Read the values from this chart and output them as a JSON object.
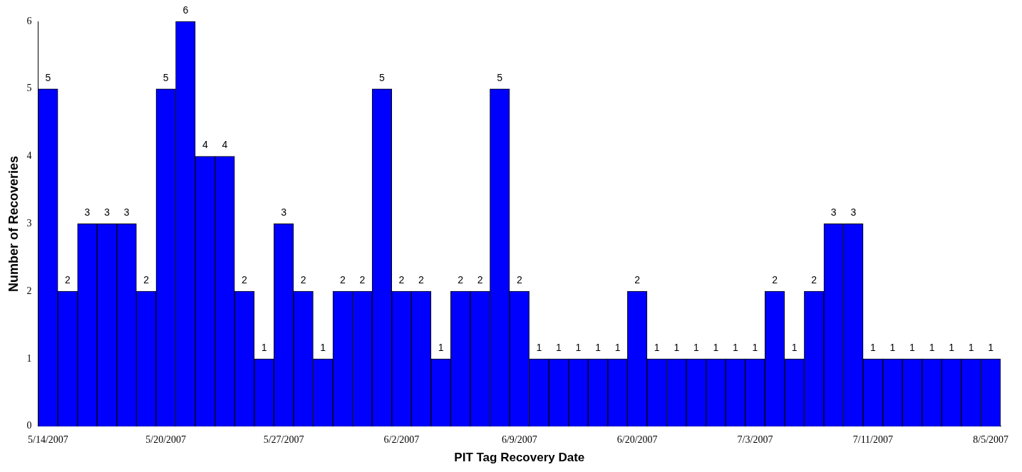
{
  "chart_data": {
    "type": "bar",
    "xlabel": "PIT Tag Recovery Date",
    "ylabel": "Number of Recoveries",
    "categories": [
      "5/14/2007",
      null,
      null,
      null,
      null,
      null,
      "5/20/2007",
      null,
      null,
      null,
      null,
      null,
      "5/27/2007",
      null,
      null,
      null,
      null,
      null,
      "6/2/2007",
      null,
      null,
      null,
      null,
      null,
      "6/9/2007",
      null,
      null,
      null,
      null,
      null,
      "6/20/2007",
      null,
      null,
      null,
      null,
      null,
      "7/3/2007",
      null,
      null,
      null,
      null,
      null,
      "7/11/2007",
      null,
      null,
      null,
      null,
      null,
      "8/5/2007"
    ],
    "values": [
      5,
      2,
      3,
      3,
      3,
      2,
      5,
      6,
      4,
      4,
      2,
      1,
      3,
      2,
      1,
      2,
      2,
      5,
      2,
      2,
      1,
      2,
      2,
      5,
      2,
      1,
      1,
      1,
      1,
      1,
      2,
      1,
      1,
      1,
      1,
      1,
      1,
      2,
      1,
      2,
      3,
      3,
      1,
      1,
      1,
      1,
      1,
      1,
      1
    ],
    "color": "#0000ff",
    "ylim": [
      0,
      6
    ],
    "yticks": [
      0,
      1,
      2,
      3,
      4,
      5,
      6
    ],
    "grid": false,
    "legend": false,
    "data_labels": true
  }
}
